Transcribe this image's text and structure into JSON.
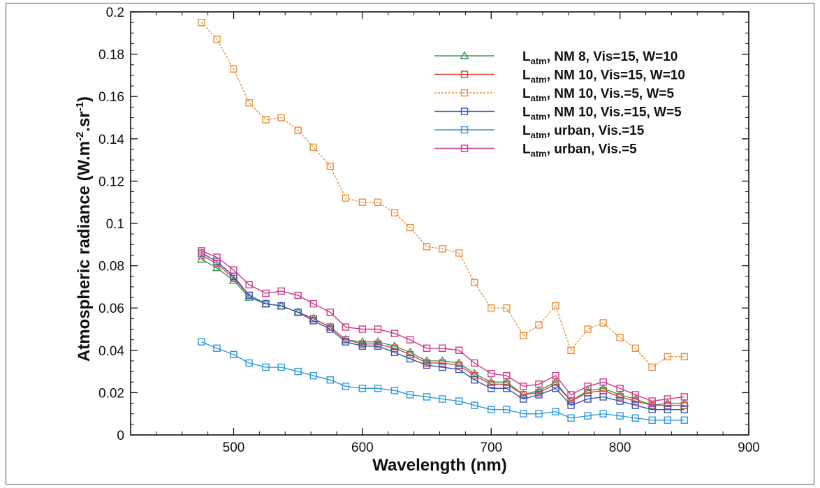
{
  "chart_data": {
    "type": "line",
    "title": "",
    "xlabel": "Wavelength (nm)",
    "ylabel": {
      "main": "Atmospheric radiance (W.m",
      "sup1": "-2",
      "mid": ".sr",
      "sup2": "-1",
      "end": ")"
    },
    "xlim": [
      420,
      900
    ],
    "ylim": [
      0,
      0.2
    ],
    "x_ticks": [
      "500",
      "600",
      "700",
      "800",
      "900"
    ],
    "y_ticks": [
      "0",
      "0.02",
      "0.04",
      "0.06",
      "0.08",
      "0.1",
      "0.12",
      "0.14",
      "0.16",
      "0.18",
      "0.2"
    ],
    "legend_placement": "top-right",
    "grid": false,
    "x": [
      475,
      487,
      500,
      512,
      525,
      537,
      550,
      562,
      575,
      587,
      600,
      612,
      625,
      637,
      650,
      662,
      675,
      687,
      700,
      712,
      725,
      737,
      750,
      762,
      775,
      787,
      800,
      812,
      825,
      837,
      850
    ],
    "series": [
      {
        "name": {
          "prefix": "L",
          "sub": "atm",
          "suffix": ", NM 8, Vis=15, W=10"
        },
        "color": "#3a9a5c",
        "marker": "triangle",
        "dashed": false,
        "values": [
          0.083,
          0.079,
          0.073,
          0.065,
          0.062,
          0.061,
          0.058,
          0.055,
          0.051,
          0.045,
          0.044,
          0.044,
          0.042,
          0.039,
          0.035,
          0.035,
          0.034,
          0.029,
          0.025,
          0.025,
          0.019,
          0.021,
          0.025,
          0.016,
          0.021,
          0.022,
          0.019,
          0.017,
          0.014,
          0.015,
          0.015
        ]
      },
      {
        "name": {
          "prefix": "L",
          "sub": "atm",
          "suffix": ", NM 10, Vis=15, W=10"
        },
        "color": "#d9443a",
        "marker": "square",
        "dashed": false,
        "values": [
          0.085,
          0.081,
          0.074,
          0.066,
          0.062,
          0.061,
          0.058,
          0.055,
          0.051,
          0.045,
          0.043,
          0.043,
          0.041,
          0.038,
          0.034,
          0.034,
          0.033,
          0.028,
          0.024,
          0.024,
          0.019,
          0.02,
          0.024,
          0.016,
          0.02,
          0.021,
          0.018,
          0.016,
          0.014,
          0.014,
          0.014
        ]
      },
      {
        "name": {
          "prefix": "L",
          "sub": "atm",
          "suffix": ", NM  10, Vis.=5, W=5"
        },
        "color": "#e8913a",
        "marker": "square",
        "dashed": true,
        "values": [
          0.195,
          0.187,
          0.173,
          0.157,
          0.149,
          0.15,
          0.144,
          0.136,
          0.127,
          0.112,
          0.11,
          0.11,
          0.105,
          0.098,
          0.089,
          0.088,
          0.086,
          0.072,
          0.06,
          0.06,
          0.047,
          0.052,
          0.061,
          0.04,
          0.05,
          0.053,
          0.046,
          0.041,
          0.032,
          0.037,
          0.037
        ]
      },
      {
        "name": {
          "prefix": "L",
          "sub": "atm",
          "suffix": ", NM  10, Vis.=15, W=5"
        },
        "color": "#3a54b4",
        "marker": "square",
        "dashed": false,
        "values": [
          0.086,
          0.082,
          0.075,
          0.066,
          0.062,
          0.061,
          0.058,
          0.054,
          0.05,
          0.044,
          0.042,
          0.042,
          0.039,
          0.036,
          0.033,
          0.032,
          0.031,
          0.026,
          0.022,
          0.022,
          0.017,
          0.019,
          0.022,
          0.014,
          0.017,
          0.018,
          0.016,
          0.014,
          0.012,
          0.012,
          0.012
        ]
      },
      {
        "name": {
          "prefix": "L",
          "sub": "atm",
          "suffix": ", urban, Vis.=15"
        },
        "color": "#2e9ad8",
        "marker": "square",
        "dashed": false,
        "values": [
          0.044,
          0.041,
          0.038,
          0.034,
          0.032,
          0.032,
          0.03,
          0.028,
          0.026,
          0.023,
          0.022,
          0.022,
          0.021,
          0.019,
          0.018,
          0.017,
          0.016,
          0.014,
          0.012,
          0.012,
          0.01,
          0.01,
          0.011,
          0.008,
          0.009,
          0.01,
          0.009,
          0.008,
          0.007,
          0.007,
          0.007
        ]
      },
      {
        "name": {
          "prefix": "L",
          "sub": "atm",
          "suffix": ", urban, Vis.=5"
        },
        "color": "#cc3a86",
        "marker": "square",
        "dashed": false,
        "values": [
          0.087,
          0.084,
          0.078,
          0.071,
          0.067,
          0.068,
          0.066,
          0.062,
          0.058,
          0.051,
          0.05,
          0.05,
          0.048,
          0.045,
          0.041,
          0.041,
          0.04,
          0.034,
          0.029,
          0.028,
          0.023,
          0.024,
          0.028,
          0.019,
          0.023,
          0.025,
          0.022,
          0.019,
          0.016,
          0.017,
          0.018
        ]
      }
    ]
  }
}
